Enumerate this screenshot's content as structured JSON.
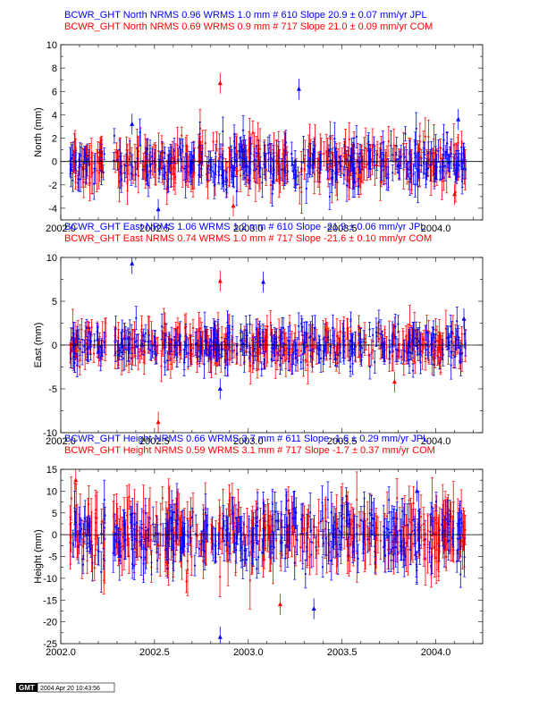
{
  "colors": {
    "jpl": "#0000ff",
    "com": "#ff0000",
    "axis": "#000000"
  },
  "stamp": {
    "logo": "GMT",
    "timestamp": "2004 Apr 20 10:43:56"
  },
  "chart_data": [
    {
      "type": "scatter",
      "title_lines": [
        {
          "text": "BCWR_GHT North NRMS 0.96 WRMS  1.0 mm # 610 Slope   20.9 ±  0.07 mm/yr JPL",
          "color": "#0000ff"
        },
        {
          "text": "BCWR_GHT North NRMS 0.69 WRMS  0.9 mm # 717 Slope   21.0 ±  0.09 mm/yr COM",
          "color": "#ff0000"
        }
      ],
      "ylabel": "North (mm)",
      "xlim": [
        2002.0,
        2004.25
      ],
      "ylim": [
        -5,
        10
      ],
      "yticks": [
        -4,
        -2,
        0,
        2,
        4,
        6,
        8,
        10
      ],
      "xticks": [
        2002.0,
        2002.5,
        2003.0,
        2003.5,
        2004.0
      ],
      "xtick_labels": [
        "2002.0",
        "2002.5",
        "2003.0",
        "2003.5",
        "2004.0"
      ],
      "ytick_labels": [
        "-4",
        "-2",
        "0",
        "2",
        "4",
        "6",
        "8",
        "10"
      ],
      "series": [
        {
          "name": "JPL",
          "n": 610,
          "wrms": 1.0,
          "seed": 11,
          "errbar": 1.0
        },
        {
          "name": "COM",
          "n": 717,
          "wrms": 0.9,
          "seed": 23,
          "errbar": 1.3
        }
      ],
      "outliers": [
        [
          2002.38,
          3.2
        ],
        [
          2002.85,
          6.7
        ],
        [
          2003.27,
          6.2
        ],
        [
          2002.92,
          -3.8
        ],
        [
          2002.52,
          -4.1
        ],
        [
          2004.1,
          -2.8
        ],
        [
          2004.12,
          3.6
        ]
      ],
      "gap": [
        2002.24,
        2002.28
      ]
    },
    {
      "type": "scatter",
      "title_lines": [
        {
          "text": "BCWR_GHT East NRMS 1.06 WRMS  1.2 mm # 610 Slope  -21.9 ±  0.06 mm/yr JPL",
          "color": "#0000ff"
        },
        {
          "text": "BCWR_GHT East NRMS 0.74 WRMS  1.0 mm # 717 Slope  -21.6 ±  0.10 mm/yr COM",
          "color": "#ff0000"
        }
      ],
      "ylabel": "East (mm)",
      "xlim": [
        2002.0,
        2004.25
      ],
      "ylim": [
        -10,
        10
      ],
      "yticks": [
        -10,
        -5,
        0,
        5,
        10
      ],
      "xticks": [
        2002.0,
        2002.5,
        2003.0,
        2003.5,
        2004.0
      ],
      "xtick_labels": [
        "2002.0",
        "2002.5",
        "2003.0",
        "2003.5",
        "2004.0"
      ],
      "ytick_labels": [
        "-10",
        "-5",
        "0",
        "5",
        "10"
      ],
      "series": [
        {
          "name": "JPL",
          "n": 610,
          "wrms": 1.2,
          "seed": 37,
          "errbar": 1.2
        },
        {
          "name": "COM",
          "n": 717,
          "wrms": 1.0,
          "seed": 41,
          "errbar": 1.6
        }
      ],
      "outliers": [
        [
          2002.38,
          9.3
        ],
        [
          2002.85,
          7.3
        ],
        [
          2003.08,
          7.2
        ],
        [
          2002.52,
          -8.8
        ],
        [
          2002.85,
          -5.0
        ],
        [
          2003.78,
          -4.2
        ],
        [
          2004.15,
          3.0
        ]
      ],
      "gap": [
        2002.24,
        2002.28
      ]
    },
    {
      "type": "scatter",
      "title_lines": [
        {
          "text": "BCWR_GHT Height NRMS 0.66 WRMS  3.7 mm # 611 Slope   -1.6 ±  0.29 mm/yr JPL",
          "color": "#0000ff"
        },
        {
          "text": "BCWR_GHT Height NRMS 0.59 WRMS  3.1 mm # 717 Slope   -1.7 ±  0.37 mm/yr COM",
          "color": "#ff0000"
        }
      ],
      "ylabel": "Height (mm)",
      "xlim": [
        2002.0,
        2004.25
      ],
      "ylim": [
        -25,
        15
      ],
      "yticks": [
        -25,
        -20,
        -15,
        -10,
        -5,
        0,
        5,
        10,
        15
      ],
      "xticks": [
        2002.0,
        2002.5,
        2003.0,
        2003.5,
        2004.0
      ],
      "xtick_labels": [
        "2002.0",
        "2002.5",
        "2003.0",
        "2003.5",
        "2004.0"
      ],
      "ytick_labels": [
        "-25",
        "-20",
        "-15",
        "-10",
        "-5",
        "0",
        "5",
        "10",
        "15"
      ],
      "series": [
        {
          "name": "JPL",
          "n": 611,
          "wrms": 3.7,
          "seed": 53,
          "errbar": 3.5
        },
        {
          "name": "COM",
          "n": 717,
          "wrms": 3.1,
          "seed": 67,
          "errbar": 5.0
        }
      ],
      "outliers": [
        [
          2002.85,
          -23.5
        ],
        [
          2003.17,
          -16.0
        ],
        [
          2003.35,
          -17.0
        ],
        [
          2002.08,
          12.5
        ],
        [
          2003.9,
          10.0
        ]
      ],
      "gap": [
        2002.24,
        2002.28
      ]
    }
  ]
}
